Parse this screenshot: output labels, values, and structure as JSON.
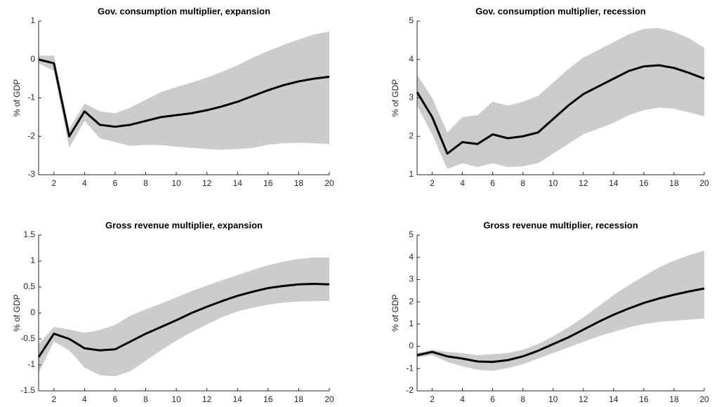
{
  "chart_data": [
    {
      "type": "line",
      "title": "Gov. consumption multiplier, expansion",
      "y_label": "% of GDP",
      "x": [
        1,
        2,
        3,
        4,
        5,
        6,
        7,
        8,
        9,
        10,
        11,
        12,
        13,
        14,
        15,
        16,
        17,
        18,
        19,
        20
      ],
      "values": [
        0,
        -0.1,
        -2.0,
        -1.35,
        -1.7,
        -1.75,
        -1.7,
        -1.6,
        -1.5,
        -1.45,
        -1.4,
        -1.32,
        -1.22,
        -1.1,
        -0.95,
        -0.8,
        -0.67,
        -0.57,
        -0.5,
        -0.45
      ],
      "band": {
        "upper": [
          0.1,
          0.1,
          -1.8,
          -1.15,
          -1.35,
          -1.4,
          -1.25,
          -1.05,
          -0.85,
          -0.72,
          -0.6,
          -0.47,
          -0.32,
          -0.15,
          0.05,
          0.22,
          0.38,
          0.52,
          0.65,
          0.73
        ],
        "lower": [
          -0.1,
          -0.3,
          -2.3,
          -1.6,
          -2.05,
          -2.15,
          -2.25,
          -2.22,
          -2.23,
          -2.27,
          -2.3,
          -2.33,
          -2.35,
          -2.33,
          -2.3,
          -2.22,
          -2.18,
          -2.17,
          -2.18,
          -2.2
        ]
      },
      "color": "#000000",
      "band_color": "#cccccc",
      "xlim": [
        1,
        20
      ],
      "xticks": [
        2,
        4,
        6,
        8,
        10,
        12,
        14,
        16,
        18,
        20
      ],
      "ylim": [
        -3,
        1
      ],
      "yticks": [
        -3,
        -2,
        -1,
        0,
        1
      ]
    },
    {
      "type": "line",
      "title": "Gov. consumption multiplier, recession",
      "y_label": "% of GDP",
      "x": [
        1,
        2,
        3,
        4,
        5,
        6,
        7,
        8,
        9,
        10,
        11,
        12,
        13,
        14,
        15,
        16,
        17,
        18,
        19,
        20
      ],
      "values": [
        3.15,
        2.5,
        1.55,
        1.85,
        1.8,
        2.05,
        1.95,
        2.0,
        2.1,
        2.45,
        2.8,
        3.1,
        3.3,
        3.5,
        3.7,
        3.82,
        3.85,
        3.78,
        3.65,
        3.5
      ],
      "band": {
        "upper": [
          3.6,
          3.0,
          2.1,
          2.5,
          2.55,
          2.9,
          2.8,
          2.9,
          3.05,
          3.4,
          3.75,
          4.05,
          4.25,
          4.45,
          4.65,
          4.8,
          4.82,
          4.72,
          4.55,
          4.3
        ],
        "lower": [
          2.8,
          2.05,
          1.15,
          1.3,
          1.2,
          1.3,
          1.2,
          1.22,
          1.3,
          1.55,
          1.8,
          2.05,
          2.2,
          2.35,
          2.55,
          2.68,
          2.75,
          2.72,
          2.62,
          2.52
        ]
      },
      "color": "#000000",
      "band_color": "#cccccc",
      "xlim": [
        1,
        20
      ],
      "xticks": [
        2,
        4,
        6,
        8,
        10,
        12,
        14,
        16,
        18,
        20
      ],
      "ylim": [
        1,
        5
      ],
      "yticks": [
        1,
        2,
        3,
        4,
        5
      ]
    },
    {
      "type": "line",
      "title": "Gross revenue multiplier, expansion",
      "y_label": "% of GDP",
      "x": [
        1,
        2,
        3,
        4,
        5,
        6,
        7,
        8,
        9,
        10,
        11,
        12,
        13,
        14,
        15,
        16,
        17,
        18,
        19,
        20
      ],
      "values": [
        -0.85,
        -0.4,
        -0.5,
        -0.68,
        -0.72,
        -0.7,
        -0.55,
        -0.4,
        -0.27,
        -0.14,
        0,
        0.12,
        0.23,
        0.33,
        0.41,
        0.48,
        0.52,
        0.55,
        0.56,
        0.55
      ],
      "band": {
        "upper": [
          -0.6,
          -0.27,
          -0.32,
          -0.38,
          -0.33,
          -0.23,
          -0.05,
          0.07,
          0.18,
          0.3,
          0.42,
          0.53,
          0.63,
          0.73,
          0.83,
          0.92,
          0.99,
          1.04,
          1.07,
          1.07
        ],
        "lower": [
          -1.15,
          -0.55,
          -0.72,
          -1.05,
          -1.2,
          -1.22,
          -1.12,
          -0.92,
          -0.72,
          -0.53,
          -0.37,
          -0.22,
          -0.08,
          0.03,
          0.1,
          0.16,
          0.2,
          0.22,
          0.23,
          0.23
        ]
      },
      "color": "#000000",
      "band_color": "#cccccc",
      "xlim": [
        1,
        20
      ],
      "xticks": [
        2,
        4,
        6,
        8,
        10,
        12,
        14,
        16,
        18,
        20
      ],
      "ylim": [
        -1.5,
        1.5
      ],
      "yticks": [
        -1.5,
        -1,
        -0.5,
        0,
        0.5,
        1,
        1.5
      ]
    },
    {
      "type": "line",
      "title": "Gross revenue multiplier, recession",
      "y_label": "% of GDP",
      "x": [
        1,
        2,
        3,
        4,
        5,
        6,
        7,
        8,
        9,
        10,
        11,
        12,
        13,
        14,
        15,
        16,
        17,
        18,
        19,
        20
      ],
      "values": [
        -0.4,
        -0.25,
        -0.45,
        -0.55,
        -0.68,
        -0.7,
        -0.62,
        -0.45,
        -0.2,
        0.1,
        0.4,
        0.75,
        1.1,
        1.42,
        1.7,
        1.95,
        2.15,
        2.32,
        2.47,
        2.6
      ],
      "band": {
        "upper": [
          -0.3,
          -0.15,
          -0.25,
          -0.3,
          -0.4,
          -0.35,
          -0.3,
          -0.15,
          0.1,
          0.45,
          0.85,
          1.3,
          1.8,
          2.3,
          2.75,
          3.15,
          3.55,
          3.85,
          4.1,
          4.3
        ],
        "lower": [
          -0.5,
          -0.4,
          -0.7,
          -0.9,
          -1.05,
          -1.1,
          -0.98,
          -0.8,
          -0.55,
          -0.3,
          -0.05,
          0.2,
          0.45,
          0.65,
          0.85,
          1.0,
          1.1,
          1.15,
          1.2,
          1.25
        ]
      },
      "color": "#000000",
      "band_color": "#cccccc",
      "xlim": [
        1,
        20
      ],
      "xticks": [
        2,
        4,
        6,
        8,
        10,
        12,
        14,
        16,
        18,
        20
      ],
      "ylim": [
        -2,
        5
      ],
      "yticks": [
        -2,
        -1,
        0,
        1,
        2,
        3,
        4,
        5
      ]
    }
  ]
}
